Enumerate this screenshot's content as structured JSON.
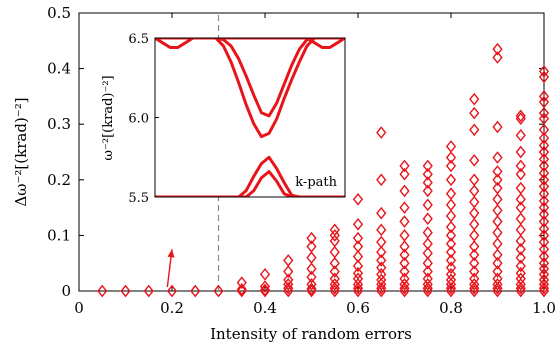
{
  "chart_data": [
    {
      "type": "scatter",
      "marker": "diamond",
      "color": "#e8141a",
      "xlabel": "Intensity of random errors",
      "ylabel": "Δω⁻²[(krad)⁻²]",
      "xlim": [
        0,
        1
      ],
      "ylim": [
        0,
        0.5
      ],
      "xticks": [
        0,
        0.2,
        0.4,
        0.6,
        0.8,
        1.0
      ],
      "xtick_labels": [
        "0",
        "0.2",
        "0.4",
        "0.6",
        "0.8",
        "1.0"
      ],
      "yticks": [
        0,
        0.1,
        0.2,
        0.3,
        0.4,
        0.5
      ],
      "ytick_labels": [
        "0",
        "0.1",
        "0.2",
        "0.3",
        "0.4",
        "0.5"
      ],
      "grid": false,
      "threshold_x": 0.3,
      "annotation": {
        "type": "arrow",
        "from": [
          0.19,
          0.0
        ],
        "to": [
          0.2,
          0.075
        ]
      },
      "series": [
        {
          "x": [
            0.05,
            0.1,
            0.15,
            0.2,
            0.25,
            0.3
          ],
          "y": [
            0,
            0,
            0,
            0,
            0,
            0
          ]
        },
        {
          "x": [
            0.35,
            0.35,
            0.35
          ],
          "y": [
            0,
            0.003,
            0.015
          ]
        },
        {
          "x": [
            0.4,
            0.4,
            0.4,
            0.4
          ],
          "y": [
            0,
            0.002,
            0.008,
            0.03
          ]
        },
        {
          "x": [
            0.45,
            0.45,
            0.45,
            0.45,
            0.45,
            0.45
          ],
          "y": [
            0,
            0.005,
            0.012,
            0.02,
            0.035,
            0.055
          ]
        },
        {
          "x": [
            0.5,
            0.5,
            0.5,
            0.5,
            0.5,
            0.5,
            0.5,
            0.5
          ],
          "y": [
            0,
            0.004,
            0.012,
            0.025,
            0.04,
            0.06,
            0.08,
            0.095
          ]
        },
        {
          "x": [
            0.55,
            0.55,
            0.55,
            0.55,
            0.55,
            0.55,
            0.55,
            0.55,
            0.55,
            0.55
          ],
          "y": [
            0,
            0.005,
            0.012,
            0.022,
            0.035,
            0.05,
            0.07,
            0.09,
            0.1,
            0.11
          ]
        },
        {
          "x": [
            0.6,
            0.6,
            0.6,
            0.6,
            0.6,
            0.6,
            0.6,
            0.6,
            0.6,
            0.6,
            0.6
          ],
          "y": [
            0,
            0.005,
            0.012,
            0.022,
            0.032,
            0.045,
            0.062,
            0.08,
            0.095,
            0.12,
            0.165
          ]
        },
        {
          "x": [
            0.65,
            0.65,
            0.65,
            0.65,
            0.65,
            0.65,
            0.65,
            0.65,
            0.65,
            0.65,
            0.65,
            0.65,
            0.65
          ],
          "y": [
            0,
            0.005,
            0.012,
            0.02,
            0.03,
            0.042,
            0.055,
            0.07,
            0.088,
            0.11,
            0.14,
            0.2,
            0.285
          ]
        },
        {
          "x": [
            0.7,
            0.7,
            0.7,
            0.7,
            0.7,
            0.7,
            0.7,
            0.7,
            0.7,
            0.7,
            0.7,
            0.7,
            0.7,
            0.7
          ],
          "y": [
            0,
            0.005,
            0.012,
            0.022,
            0.035,
            0.05,
            0.065,
            0.08,
            0.1,
            0.125,
            0.15,
            0.18,
            0.21,
            0.225
          ]
        },
        {
          "x": [
            0.75,
            0.75,
            0.75,
            0.75,
            0.75,
            0.75,
            0.75,
            0.75,
            0.75,
            0.75,
            0.75,
            0.75,
            0.75,
            0.75,
            0.75
          ],
          "y": [
            0,
            0.005,
            0.012,
            0.022,
            0.035,
            0.05,
            0.068,
            0.085,
            0.105,
            0.13,
            0.155,
            0.18,
            0.195,
            0.21,
            0.225
          ]
        },
        {
          "x": [
            0.8,
            0.8,
            0.8,
            0.8,
            0.8,
            0.8,
            0.8,
            0.8,
            0.8,
            0.8,
            0.8,
            0.8,
            0.8,
            0.8,
            0.8,
            0.8,
            0.8,
            0.8
          ],
          "y": [
            0,
            0.005,
            0.012,
            0.02,
            0.03,
            0.042,
            0.055,
            0.07,
            0.085,
            0.1,
            0.115,
            0.135,
            0.155,
            0.175,
            0.2,
            0.225,
            0.24,
            0.26
          ]
        },
        {
          "x": [
            0.85,
            0.85,
            0.85,
            0.85,
            0.85,
            0.85,
            0.85,
            0.85,
            0.85,
            0.85,
            0.85,
            0.85,
            0.85,
            0.85,
            0.85,
            0.85,
            0.85,
            0.85
          ],
          "y": [
            0,
            0.005,
            0.012,
            0.022,
            0.035,
            0.05,
            0.065,
            0.08,
            0.1,
            0.12,
            0.14,
            0.16,
            0.18,
            0.2,
            0.235,
            0.29,
            0.32,
            0.345
          ]
        },
        {
          "x": [
            0.9,
            0.9,
            0.9,
            0.9,
            0.9,
            0.9,
            0.9,
            0.9,
            0.9,
            0.9,
            0.9,
            0.9,
            0.9,
            0.9,
            0.9,
            0.9,
            0.9,
            0.9,
            0.9
          ],
          "y": [
            0,
            0.005,
            0.012,
            0.022,
            0.035,
            0.05,
            0.065,
            0.085,
            0.105,
            0.125,
            0.145,
            0.165,
            0.185,
            0.2,
            0.215,
            0.24,
            0.295,
            0.42,
            0.435
          ]
        },
        {
          "x": [
            0.95,
            0.95,
            0.95,
            0.95,
            0.95,
            0.95,
            0.95,
            0.95,
            0.95,
            0.95,
            0.95,
            0.95,
            0.95,
            0.95,
            0.95,
            0.95,
            0.95,
            0.95,
            0.95,
            0.95
          ],
          "y": [
            0,
            0.005,
            0.012,
            0.022,
            0.032,
            0.045,
            0.06,
            0.075,
            0.09,
            0.11,
            0.13,
            0.15,
            0.165,
            0.185,
            0.21,
            0.225,
            0.25,
            0.28,
            0.31,
            0.315
          ]
        },
        {
          "x": [
            1.0,
            1.0,
            1.0,
            1.0,
            1.0,
            1.0,
            1.0,
            1.0,
            1.0,
            1.0,
            1.0,
            1.0,
            1.0,
            1.0,
            1.0,
            1.0,
            1.0,
            1.0,
            1.0,
            1.0,
            1.0,
            1.0,
            1.0,
            1.0,
            1.0,
            1.0,
            1.0,
            1.0,
            1.0,
            1.0,
            1.0,
            1.0
          ],
          "y": [
            0,
            0.005,
            0.012,
            0.02,
            0.03,
            0.04,
            0.05,
            0.062,
            0.075,
            0.088,
            0.1,
            0.112,
            0.125,
            0.138,
            0.15,
            0.162,
            0.175,
            0.188,
            0.2,
            0.212,
            0.225,
            0.237,
            0.25,
            0.262,
            0.275,
            0.29,
            0.31,
            0.32,
            0.34,
            0.35,
            0.385,
            0.395
          ]
        }
      ]
    },
    {
      "type": "line",
      "inset": true,
      "color": "#e8141a",
      "xlabel": "k-path",
      "ylabel": "ω⁻²[(krad)⁻²]",
      "ylim": [
        5.5,
        6.5
      ],
      "yticks": [
        5.5,
        6.0,
        6.5
      ],
      "ytick_labels": [
        "5.5",
        "6.0",
        "6.5"
      ],
      "x": [
        0,
        0.04,
        0.08,
        0.12,
        0.16,
        0.2,
        0.24,
        0.28,
        0.32,
        0.36,
        0.4,
        0.44,
        0.48,
        0.52,
        0.56,
        0.6,
        0.64,
        0.68,
        0.72,
        0.76,
        0.8,
        0.84,
        0.88,
        0.92,
        0.96,
        1.0
      ],
      "series": [
        {
          "values": [
            6.5,
            6.47,
            6.44,
            6.44,
            6.47,
            6.5,
            6.5,
            6.5,
            6.5,
            6.5,
            6.5,
            6.5,
            6.5,
            6.5,
            6.5,
            6.5,
            6.5,
            6.5,
            6.5,
            6.5,
            6.5,
            6.5,
            6.5,
            6.5,
            6.5,
            6.5
          ]
        },
        {
          "values": [
            6.5,
            6.5,
            6.5,
            6.5,
            6.5,
            6.5,
            6.5,
            6.5,
            6.5,
            6.5,
            6.5,
            6.5,
            6.5,
            6.5,
            6.5,
            6.5,
            6.5,
            6.5,
            6.5,
            6.5,
            6.5,
            6.47,
            6.44,
            6.44,
            6.47,
            6.5
          ]
        },
        {
          "values": [
            6.5,
            6.5,
            6.5,
            6.5,
            6.5,
            6.5,
            6.5,
            6.5,
            6.5,
            6.49,
            6.45,
            6.37,
            6.26,
            6.14,
            6.03,
            6.01,
            6.09,
            6.21,
            6.33,
            6.43,
            6.49,
            6.5,
            6.5,
            6.5,
            6.5,
            6.5
          ]
        },
        {
          "values": [
            6.5,
            6.5,
            6.5,
            6.5,
            6.5,
            6.5,
            6.5,
            6.5,
            6.5,
            6.45,
            6.35,
            6.22,
            6.08,
            5.96,
            5.88,
            5.9,
            5.99,
            6.12,
            6.24,
            6.35,
            6.45,
            6.5,
            6.5,
            6.5,
            6.5,
            6.5
          ]
        },
        {
          "values": [
            5.5,
            5.5,
            5.5,
            5.5,
            5.5,
            5.5,
            5.5,
            5.5,
            5.5,
            5.5,
            5.5,
            5.5,
            5.54,
            5.63,
            5.71,
            5.75,
            5.68,
            5.59,
            5.51,
            5.5,
            5.5,
            5.5,
            5.5,
            5.5,
            5.5,
            5.5
          ]
        },
        {
          "values": [
            5.5,
            5.5,
            5.5,
            5.5,
            5.5,
            5.5,
            5.5,
            5.5,
            5.5,
            5.5,
            5.5,
            5.5,
            5.5,
            5.54,
            5.62,
            5.66,
            5.6,
            5.52,
            5.5,
            5.5,
            5.5,
            5.5,
            5.5,
            5.5,
            5.5,
            5.5
          ]
        }
      ]
    }
  ]
}
